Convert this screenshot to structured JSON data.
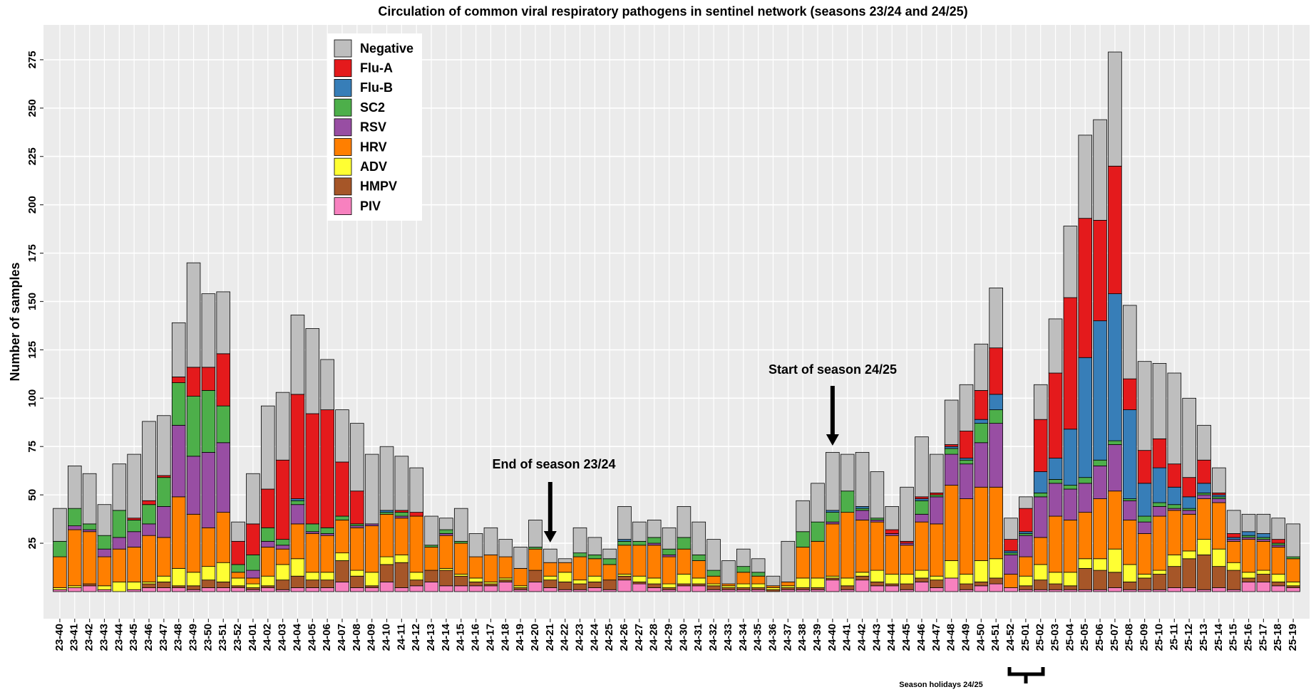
{
  "chart_data": {
    "type": "stacked_bar",
    "title": "Circulation of common viral respiratory  pathogens in sentinel network (seasons 23/24 and 24/25)",
    "y_label": "Number of samples",
    "annotations": [
      "End of season 23/24",
      "Start of season 24/25",
      "Season holidays 24/25"
    ],
    "legend": "top-left",
    "grid": true,
    "ylim": [
      -14,
      293
    ],
    "yticks": [
      25,
      50,
      75,
      100,
      125,
      150,
      175,
      200,
      225,
      250,
      275
    ],
    "categories": [
      "23-40",
      "23-41",
      "23-42",
      "23-43",
      "23-44",
      "23-45",
      "23-46",
      "23-47",
      "23-48",
      "23-49",
      "23-50",
      "23-51",
      "23-52",
      "24-01",
      "24-02",
      "24-03",
      "24-04",
      "24-05",
      "24-06",
      "24-07",
      "24-08",
      "24-09",
      "24-10",
      "24-11",
      "24-12",
      "24-13",
      "24-14",
      "24-15",
      "24-16",
      "24-17",
      "24-18",
      "24-19",
      "24-20",
      "24-21",
      "24-22",
      "24-23",
      "24-24",
      "24-25",
      "24-26",
      "24-27",
      "24-28",
      "24-29",
      "24-30",
      "24-31",
      "24-32",
      "24-33",
      "24-34",
      "24-35",
      "24-36",
      "24-37",
      "24-38",
      "24-39",
      "24-40",
      "24-41",
      "24-42",
      "24-43",
      "24-44",
      "24-45",
      "24-46",
      "24-47",
      "24-48",
      "24-49",
      "24-50",
      "24-51",
      "24-52",
      "25-01",
      "25-02",
      "25-03",
      "25-04",
      "25-05",
      "25-06",
      "25-07",
      "25-08",
      "25-09",
      "25-10",
      "25-11",
      "25-12",
      "25-13",
      "25-14",
      "25-15",
      "25-16",
      "25-17",
      "25-18",
      "25-19"
    ],
    "series": [
      {
        "name": "Negative",
        "color": "#bebebe",
        "values": [
          17,
          22,
          26,
          16,
          24,
          33,
          41,
          31,
          28,
          54,
          38,
          32,
          10,
          26,
          43,
          35,
          41,
          44,
          26,
          27,
          35,
          36,
          33,
          28,
          23,
          15,
          6,
          17,
          12,
          14,
          9,
          11,
          14,
          7,
          2,
          13,
          9,
          5,
          17,
          10,
          9,
          11,
          16,
          17,
          16,
          12,
          9,
          7,
          5,
          21,
          16,
          20,
          30,
          19,
          28,
          24,
          12,
          28,
          31,
          20,
          23,
          24,
          24,
          31,
          11,
          6,
          18,
          28,
          37,
          43,
          52,
          59,
          38,
          46,
          39,
          47,
          41,
          18,
          13,
          12,
          9,
          10,
          11,
          17
        ]
      },
      {
        "name": "Flu-A",
        "color": "#e41a1c",
        "values": [
          0,
          0,
          0,
          0,
          0,
          1,
          2,
          1,
          3,
          15,
          12,
          27,
          12,
          16,
          20,
          41,
          54,
          57,
          61,
          28,
          17,
          0,
          0,
          1,
          2,
          0,
          0,
          0,
          0,
          0,
          0,
          0,
          0,
          0,
          0,
          0,
          0,
          0,
          0,
          0,
          0,
          0,
          0,
          0,
          0,
          0,
          0,
          0,
          0,
          0,
          0,
          0,
          0,
          0,
          0,
          0,
          2,
          1,
          1,
          1,
          1,
          14,
          15,
          24,
          6,
          12,
          27,
          44,
          68,
          72,
          52,
          66,
          16,
          17,
          15,
          12,
          10,
          12,
          1,
          2,
          0,
          0,
          2,
          0
        ]
      },
      {
        "name": "Flu-B",
        "color": "#377eb8",
        "values": [
          0,
          0,
          0,
          0,
          0,
          0,
          0,
          0,
          0,
          0,
          0,
          0,
          0,
          0,
          0,
          0,
          1,
          0,
          0,
          0,
          0,
          0,
          1,
          0,
          0,
          0,
          0,
          0,
          0,
          0,
          0,
          0,
          0,
          0,
          0,
          0,
          0,
          0,
          1,
          0,
          0,
          0,
          0,
          0,
          0,
          0,
          0,
          0,
          0,
          0,
          0,
          0,
          1,
          0,
          1,
          0,
          0,
          0,
          1,
          0,
          1,
          1,
          2,
          8,
          1,
          1,
          11,
          11,
          29,
          62,
          72,
          76,
          46,
          17,
          18,
          9,
          6,
          5,
          1,
          1,
          2,
          2,
          0,
          0
        ]
      },
      {
        "name": "SC2",
        "color": "#4daf4a",
        "values": [
          8,
          9,
          3,
          7,
          14,
          6,
          10,
          15,
          22,
          31,
          32,
          19,
          4,
          8,
          7,
          3,
          2,
          4,
          3,
          2,
          1,
          0,
          1,
          2,
          0,
          1,
          2,
          1,
          0,
          0,
          0,
          0,
          1,
          0,
          0,
          2,
          2,
          3,
          2,
          2,
          3,
          3,
          6,
          3,
          3,
          0,
          3,
          2,
          0,
          0,
          8,
          10,
          5,
          11,
          1,
          1,
          0,
          0,
          7,
          1,
          3,
          2,
          10,
          7,
          1,
          1,
          2,
          2,
          2,
          3,
          3,
          2,
          1,
          3,
          2,
          2,
          1,
          1,
          1,
          0,
          1,
          1,
          1,
          1
        ]
      },
      {
        "name": "RSV",
        "color": "#984ea3",
        "values": [
          0,
          2,
          1,
          4,
          6,
          8,
          6,
          16,
          37,
          30,
          39,
          36,
          0,
          4,
          3,
          2,
          10,
          1,
          1,
          0,
          1,
          1,
          0,
          1,
          0,
          0,
          1,
          0,
          0,
          0,
          0,
          0,
          0,
          0,
          0,
          0,
          0,
          0,
          0,
          0,
          1,
          1,
          0,
          0,
          0,
          0,
          0,
          0,
          0,
          0,
          0,
          0,
          1,
          0,
          5,
          1,
          1,
          1,
          4,
          14,
          16,
          18,
          23,
          33,
          10,
          11,
          21,
          17,
          16,
          15,
          17,
          24,
          10,
          6,
          5,
          1,
          2,
          2,
          2,
          1,
          1,
          1,
          1,
          0
        ]
      },
      {
        "name": "HRV",
        "color": "#ff7f00",
        "values": [
          16,
          29,
          27,
          15,
          17,
          18,
          24,
          20,
          37,
          30,
          20,
          26,
          3,
          3,
          15,
          8,
          18,
          20,
          19,
          17,
          22,
          24,
          22,
          19,
          29,
          12,
          17,
          16,
          11,
          14,
          11,
          9,
          11,
          7,
          5,
          12,
          9,
          8,
          15,
          16,
          17,
          14,
          13,
          9,
          4,
          1,
          6,
          4,
          1,
          2,
          16,
          19,
          27,
          34,
          27,
          25,
          20,
          15,
          25,
          27,
          39,
          39,
          38,
          37,
          7,
          10,
          14,
          29,
          27,
          24,
          31,
          30,
          23,
          21,
          28,
          23,
          19,
          21,
          24,
          11,
          17,
          15,
          14,
          12
        ]
      },
      {
        "name": "ADV",
        "color": "#ffff33",
        "values": [
          1,
          1,
          0,
          2,
          5,
          4,
          1,
          3,
          9,
          7,
          7,
          10,
          4,
          2,
          5,
          8,
          9,
          4,
          4,
          4,
          3,
          7,
          4,
          4,
          4,
          0,
          1,
          1,
          2,
          1,
          1,
          1,
          0,
          2,
          5,
          2,
          3,
          0,
          1,
          3,
          3,
          2,
          5,
          3,
          1,
          1,
          2,
          2,
          1,
          1,
          5,
          5,
          1,
          4,
          2,
          6,
          5,
          5,
          4,
          2,
          9,
          5,
          11,
          10,
          0,
          5,
          8,
          6,
          7,
          5,
          6,
          12,
          9,
          2,
          2,
          6,
          4,
          8,
          9,
          4,
          3,
          2,
          4,
          2
        ]
      },
      {
        "name": "HMPV",
        "color": "#a65628",
        "values": [
          0,
          0,
          1,
          0,
          0,
          0,
          2,
          3,
          1,
          2,
          4,
          3,
          1,
          1,
          1,
          5,
          6,
          4,
          4,
          11,
          6,
          1,
          9,
          13,
          3,
          6,
          8,
          5,
          2,
          1,
          1,
          1,
          6,
          4,
          4,
          3,
          3,
          5,
          2,
          1,
          2,
          1,
          1,
          1,
          2,
          1,
          1,
          1,
          1,
          1,
          1,
          1,
          1,
          2,
          2,
          2,
          1,
          3,
          2,
          4,
          0,
          3,
          2,
          3,
          0,
          2,
          5,
          3,
          2,
          11,
          10,
          8,
          4,
          6,
          8,
          11,
          15,
          18,
          11,
          10,
          2,
          4,
          2,
          1
        ]
      },
      {
        "name": "PIV",
        "color": "#f781bf",
        "values": [
          1,
          2,
          3,
          1,
          0,
          1,
          2,
          2,
          2,
          1,
          2,
          2,
          2,
          1,
          2,
          1,
          2,
          2,
          2,
          5,
          2,
          2,
          5,
          2,
          3,
          5,
          3,
          3,
          3,
          3,
          5,
          1,
          5,
          2,
          1,
          1,
          2,
          1,
          6,
          4,
          2,
          1,
          3,
          3,
          1,
          1,
          1,
          1,
          0,
          1,
          1,
          1,
          6,
          1,
          6,
          3,
          3,
          1,
          5,
          2,
          7,
          1,
          3,
          4,
          2,
          1,
          1,
          1,
          1,
          1,
          1,
          2,
          1,
          1,
          1,
          2,
          2,
          1,
          2,
          1,
          5,
          5,
          3,
          2
        ]
      }
    ]
  }
}
